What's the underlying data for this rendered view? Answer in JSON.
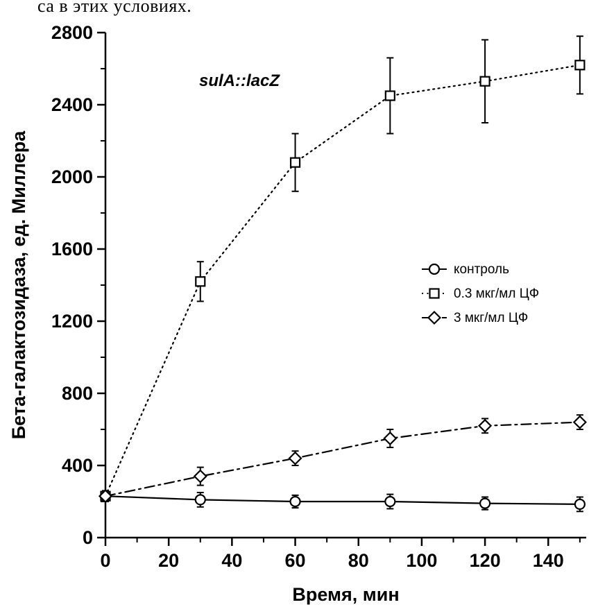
{
  "page": {
    "fragment_text": "са в этих условиях."
  },
  "chart_data": {
    "type": "line",
    "title": "",
    "annotation": "sulA::lacZ",
    "xlabel": "Время, мин",
    "ylabel": "Бета-галактозидаза, ед. Миллера",
    "xlim": [
      0,
      152
    ],
    "ylim": [
      0,
      2800
    ],
    "xticks": [
      0,
      20,
      40,
      60,
      80,
      100,
      120,
      140
    ],
    "yticks": [
      0,
      400,
      800,
      1200,
      1600,
      2000,
      2400,
      2800
    ],
    "x": [
      0,
      30,
      60,
      90,
      120,
      150
    ],
    "series": [
      {
        "name": "контроль",
        "marker": "circle",
        "dash": "solid",
        "values": [
          230,
          210,
          200,
          200,
          190,
          185
        ],
        "errors": [
          25,
          40,
          35,
          40,
          35,
          40
        ]
      },
      {
        "name": "0.3 мкг/мл ЦФ",
        "marker": "square",
        "dash": "dotted",
        "values": [
          230,
          1420,
          2080,
          2450,
          2530,
          2620
        ],
        "errors": [
          30,
          110,
          160,
          210,
          230,
          160
        ]
      },
      {
        "name": "3 мкг/мл ЦФ",
        "marker": "diamond",
        "dash": "dashdot",
        "values": [
          230,
          340,
          440,
          550,
          620,
          640
        ],
        "errors": [
          30,
          50,
          40,
          50,
          40,
          40
        ]
      }
    ],
    "legend_position": "middle-right",
    "grid": false,
    "colors": {
      "ink": "#000000",
      "background": "#ffffff"
    }
  }
}
